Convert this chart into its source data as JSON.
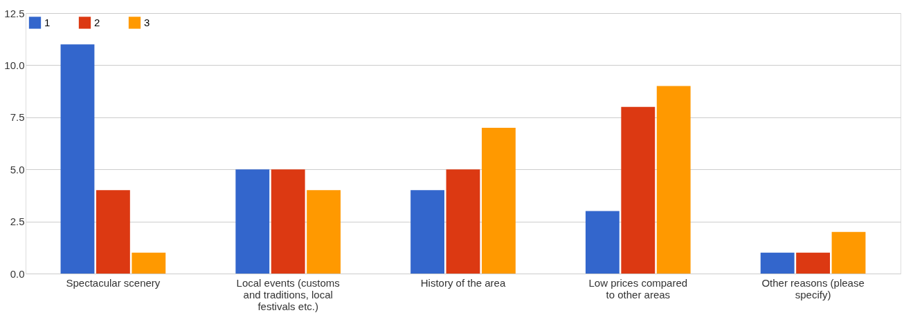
{
  "chart_data": {
    "type": "bar",
    "categories": [
      "Spectacular scenery",
      "Local events (customs and traditions, local festivals etc.)",
      "History of the area",
      "Low prices compared to other areas",
      "Other reasons (please specify)"
    ],
    "series": [
      {
        "name": "1",
        "color": "#3366cc",
        "values": [
          11,
          5,
          4,
          3,
          1
        ]
      },
      {
        "name": "2",
        "color": "#dc3912",
        "values": [
          4,
          5,
          5,
          8,
          1
        ]
      },
      {
        "name": "3",
        "color": "#ff9900",
        "values": [
          1,
          4,
          7,
          9,
          2
        ]
      }
    ],
    "ylim": [
      0,
      12.5
    ],
    "yticks": [
      {
        "value": 0,
        "label": "0.0"
      },
      2.5,
      {
        "value": 5,
        "label": "5.0"
      },
      7.5,
      {
        "value": 10,
        "label": "10.0"
      },
      12.5
    ],
    "grid": "y",
    "legend": "top left"
  }
}
